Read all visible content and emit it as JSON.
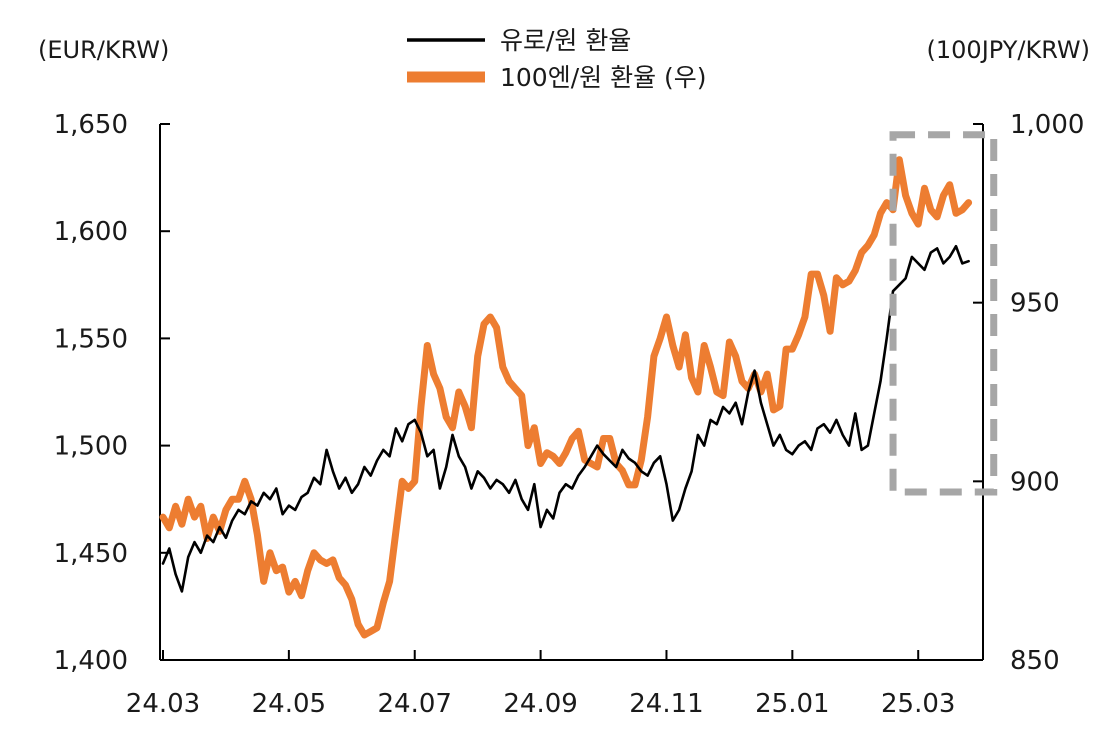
{
  "chart_data": {
    "type": "line",
    "title": "",
    "xlabel": "",
    "left_unit": "(EUR/KRW)",
    "right_unit": "(100JPY/KRW)",
    "x_ticks": [
      "24.03",
      "24.05",
      "24.07",
      "24.09",
      "24.11",
      "25.01",
      "25.03"
    ],
    "x_range": [
      0,
      12.95
    ],
    "y_left": {
      "min": 1400,
      "max": 1650,
      "ticks": [
        "1,400",
        "1,450",
        "1,500",
        "1,550",
        "1,600",
        "1,650"
      ]
    },
    "y_right": {
      "min": 850,
      "max": 1000,
      "ticks": [
        "850",
        "900",
        "950",
        "1,000"
      ]
    },
    "legend_position": "top-center",
    "highlight_region": {
      "x_from": 11.6,
      "x_to": 13.2,
      "y_right_from": 897,
      "y_right_to": 997
    },
    "series": [
      {
        "name": "유로/원 환율",
        "axis": "left",
        "color": "#000000",
        "x": [
          0,
          0.1,
          0.2,
          0.3,
          0.4,
          0.5,
          0.6,
          0.7,
          0.8,
          0.9,
          1.0,
          1.1,
          1.2,
          1.3,
          1.4,
          1.5,
          1.6,
          1.7,
          1.8,
          1.9,
          2.0,
          2.1,
          2.2,
          2.3,
          2.4,
          2.5,
          2.6,
          2.7,
          2.8,
          2.9,
          3.0,
          3.1,
          3.2,
          3.3,
          3.4,
          3.5,
          3.6,
          3.7,
          3.8,
          3.9,
          4.0,
          4.1,
          4.2,
          4.3,
          4.4,
          4.5,
          4.6,
          4.7,
          4.8,
          4.9,
          5.0,
          5.1,
          5.2,
          5.3,
          5.4,
          5.5,
          5.6,
          5.7,
          5.8,
          5.9,
          6.0,
          6.1,
          6.2,
          6.3,
          6.4,
          6.5,
          6.6,
          6.7,
          6.8,
          6.9,
          7.0,
          7.1,
          7.2,
          7.3,
          7.4,
          7.5,
          7.6,
          7.7,
          7.8,
          7.9,
          8.0,
          8.1,
          8.2,
          8.3,
          8.4,
          8.5,
          8.6,
          8.7,
          8.8,
          8.9,
          9.0,
          9.1,
          9.2,
          9.3,
          9.4,
          9.5,
          9.6,
          9.7,
          9.8,
          9.9,
          10.0,
          10.1,
          10.2,
          10.3,
          10.4,
          10.5,
          10.6,
          10.7,
          10.8,
          10.9,
          11.0,
          11.1,
          11.2,
          11.3,
          11.4,
          11.5,
          11.6,
          11.7,
          11.8,
          11.9,
          12.0,
          12.1,
          12.2,
          12.3,
          12.4,
          12.5,
          12.6,
          12.7,
          12.8
        ],
        "values": [
          1445,
          1452,
          1440,
          1432,
          1448,
          1455,
          1450,
          1458,
          1455,
          1462,
          1457,
          1465,
          1470,
          1468,
          1474,
          1472,
          1478,
          1475,
          1480,
          1468,
          1472,
          1470,
          1476,
          1478,
          1485,
          1482,
          1498,
          1488,
          1480,
          1485,
          1478,
          1482,
          1490,
          1486,
          1493,
          1498,
          1495,
          1508,
          1502,
          1510,
          1512,
          1506,
          1495,
          1498,
          1480,
          1490,
          1505,
          1495,
          1490,
          1480,
          1488,
          1485,
          1480,
          1484,
          1482,
          1478,
          1484,
          1475,
          1470,
          1482,
          1462,
          1470,
          1466,
          1478,
          1482,
          1480,
          1486,
          1490,
          1495,
          1500,
          1496,
          1493,
          1490,
          1498,
          1494,
          1492,
          1488,
          1486,
          1492,
          1495,
          1482,
          1465,
          1470,
          1480,
          1488,
          1505,
          1500,
          1512,
          1510,
          1518,
          1515,
          1520,
          1510,
          1525,
          1535,
          1520,
          1510,
          1500,
          1505,
          1498,
          1496,
          1500,
          1502,
          1498,
          1508,
          1510,
          1506,
          1512,
          1505,
          1500,
          1515,
          1498,
          1500,
          1515,
          1530,
          1550,
          1572,
          1575,
          1578,
          1588,
          1585,
          1582,
          1590,
          1592,
          1585,
          1588,
          1593,
          1585,
          1586
        ]
      },
      {
        "name": "100엔/원 환율 (우)",
        "axis": "right",
        "color": "#ed7d31",
        "x": [
          0,
          0.1,
          0.2,
          0.3,
          0.4,
          0.5,
          0.6,
          0.7,
          0.8,
          0.9,
          1.0,
          1.1,
          1.2,
          1.3,
          1.4,
          1.5,
          1.6,
          1.7,
          1.8,
          1.9,
          2.0,
          2.1,
          2.2,
          2.3,
          2.4,
          2.5,
          2.6,
          2.7,
          2.8,
          2.9,
          3.0,
          3.1,
          3.2,
          3.3,
          3.4,
          3.5,
          3.6,
          3.7,
          3.8,
          3.9,
          4.0,
          4.1,
          4.2,
          4.3,
          4.4,
          4.5,
          4.6,
          4.7,
          4.8,
          4.9,
          5.0,
          5.1,
          5.2,
          5.3,
          5.4,
          5.5,
          5.6,
          5.7,
          5.8,
          5.9,
          6.0,
          6.1,
          6.2,
          6.3,
          6.4,
          6.5,
          6.6,
          6.7,
          6.8,
          6.9,
          7.0,
          7.1,
          7.2,
          7.3,
          7.4,
          7.5,
          7.6,
          7.7,
          7.8,
          7.9,
          8.0,
          8.1,
          8.2,
          8.3,
          8.4,
          8.5,
          8.6,
          8.7,
          8.8,
          8.9,
          9.0,
          9.1,
          9.2,
          9.3,
          9.4,
          9.5,
          9.6,
          9.7,
          9.8,
          9.9,
          10.0,
          10.1,
          10.2,
          10.3,
          10.4,
          10.5,
          10.6,
          10.7,
          10.8,
          10.9,
          11.0,
          11.1,
          11.2,
          11.3,
          11.4,
          11.5,
          11.6,
          11.7,
          11.8,
          11.9,
          12.0,
          12.1,
          12.2,
          12.3,
          12.4,
          12.5,
          12.6,
          12.7,
          12.8
        ],
        "values": [
          890,
          887,
          893,
          888,
          895,
          890,
          893,
          884,
          890,
          886,
          892,
          895,
          895,
          900,
          895,
          885,
          872,
          880,
          875,
          876,
          869,
          872,
          868,
          875,
          880,
          878,
          877,
          878,
          873,
          871,
          867,
          860,
          857,
          858,
          859,
          866,
          872,
          886,
          900,
          898,
          900,
          921,
          938,
          930,
          926,
          918,
          915,
          925,
          921,
          915,
          935,
          944,
          946,
          943,
          932,
          928,
          926,
          924,
          910,
          915,
          905,
          908,
          907,
          905,
          908,
          912,
          914,
          906,
          905,
          904,
          912,
          912,
          905,
          903,
          899,
          899,
          906,
          918,
          935,
          940,
          946,
          938,
          932,
          941,
          929,
          925,
          938,
          932,
          925,
          924,
          939,
          935,
          928,
          926,
          930,
          925,
          930,
          920,
          921,
          937,
          937,
          941,
          946,
          958,
          958,
          952,
          942,
          957,
          955,
          956,
          959,
          964,
          966,
          969,
          975,
          978,
          976,
          990,
          980,
          975,
          972,
          982,
          976,
          974,
          980,
          983,
          975,
          976,
          978
        ]
      }
    ]
  }
}
